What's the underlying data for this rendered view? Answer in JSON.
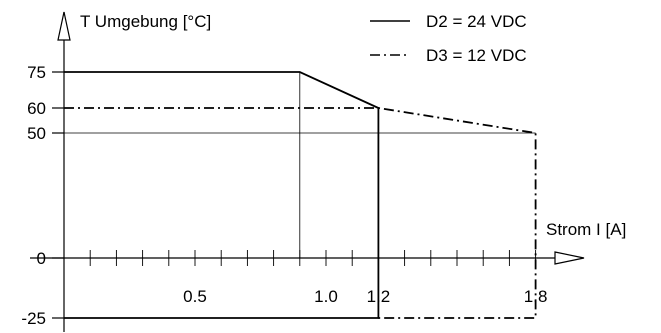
{
  "chart_data": {
    "type": "line",
    "title": "",
    "ylabel": "T Umgebung [°C]",
    "xlabel": "Strom I [A]",
    "xlim": [
      0,
      1.8
    ],
    "ylim": [
      -25,
      75
    ],
    "y_ticks": [
      75,
      60,
      50,
      0,
      -25
    ],
    "y_tick_labels": [
      "75",
      "60",
      "50",
      "0",
      "-25"
    ],
    "x_tick_labels": [
      {
        "x": 0.5,
        "label": "0.5"
      },
      {
        "x": 1.0,
        "label": "1.0"
      },
      {
        "x": 1.2,
        "label": "1.2"
      },
      {
        "x": 1.8,
        "label": "1.8"
      }
    ],
    "x_minor_step": 0.1,
    "reference_lines": [
      {
        "axis": "y",
        "value": 50
      },
      {
        "axis": "x",
        "value": 0.9
      }
    ],
    "legend_position": "top-right",
    "series": [
      {
        "name": "D2 = 24 VDC",
        "style": "solid",
        "color": "#000000",
        "x": [
          0,
          0.9,
          1.2,
          1.2,
          0
        ],
        "y": [
          75,
          75,
          60,
          -25,
          -25
        ]
      },
      {
        "name": "D3 = 12 VDC",
        "style": "dash-dot",
        "color": "#000000",
        "x": [
          0,
          1.2,
          1.8,
          1.8,
          1.2
        ],
        "y": [
          60,
          60,
          50,
          -25,
          -25
        ]
      }
    ]
  }
}
